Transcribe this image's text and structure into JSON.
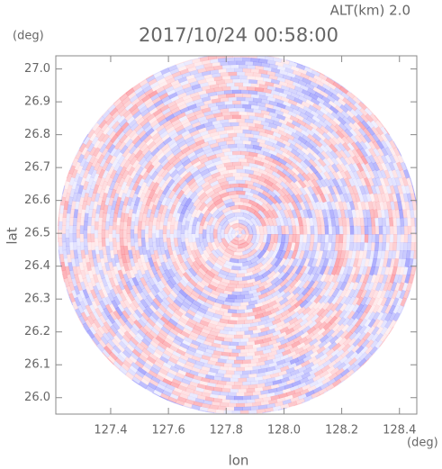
{
  "chart_data": {
    "type": "radar-ppi",
    "title": "2017/10/24 00:58:00",
    "subtitle": "ALT(km) 2.0",
    "x_label": "lon",
    "x_unit": "(deg)",
    "y_label": "lat",
    "y_unit": "(deg)",
    "xlim": [
      127.21,
      128.46
    ],
    "xticks": [
      127.4,
      127.6,
      127.8,
      {
        "value": 128.0,
        "label": "128.0"
      },
      128.2,
      128.4
    ],
    "ylim": [
      25.95,
      27.04
    ],
    "yticks": [
      {
        "value": 26.0,
        "label": "26.0"
      },
      26.1,
      26.2,
      26.3,
      26.4,
      26.5,
      26.6,
      26.7,
      26.8,
      26.9,
      {
        "value": 27.0,
        "label": "27.0"
      }
    ]
  }
}
